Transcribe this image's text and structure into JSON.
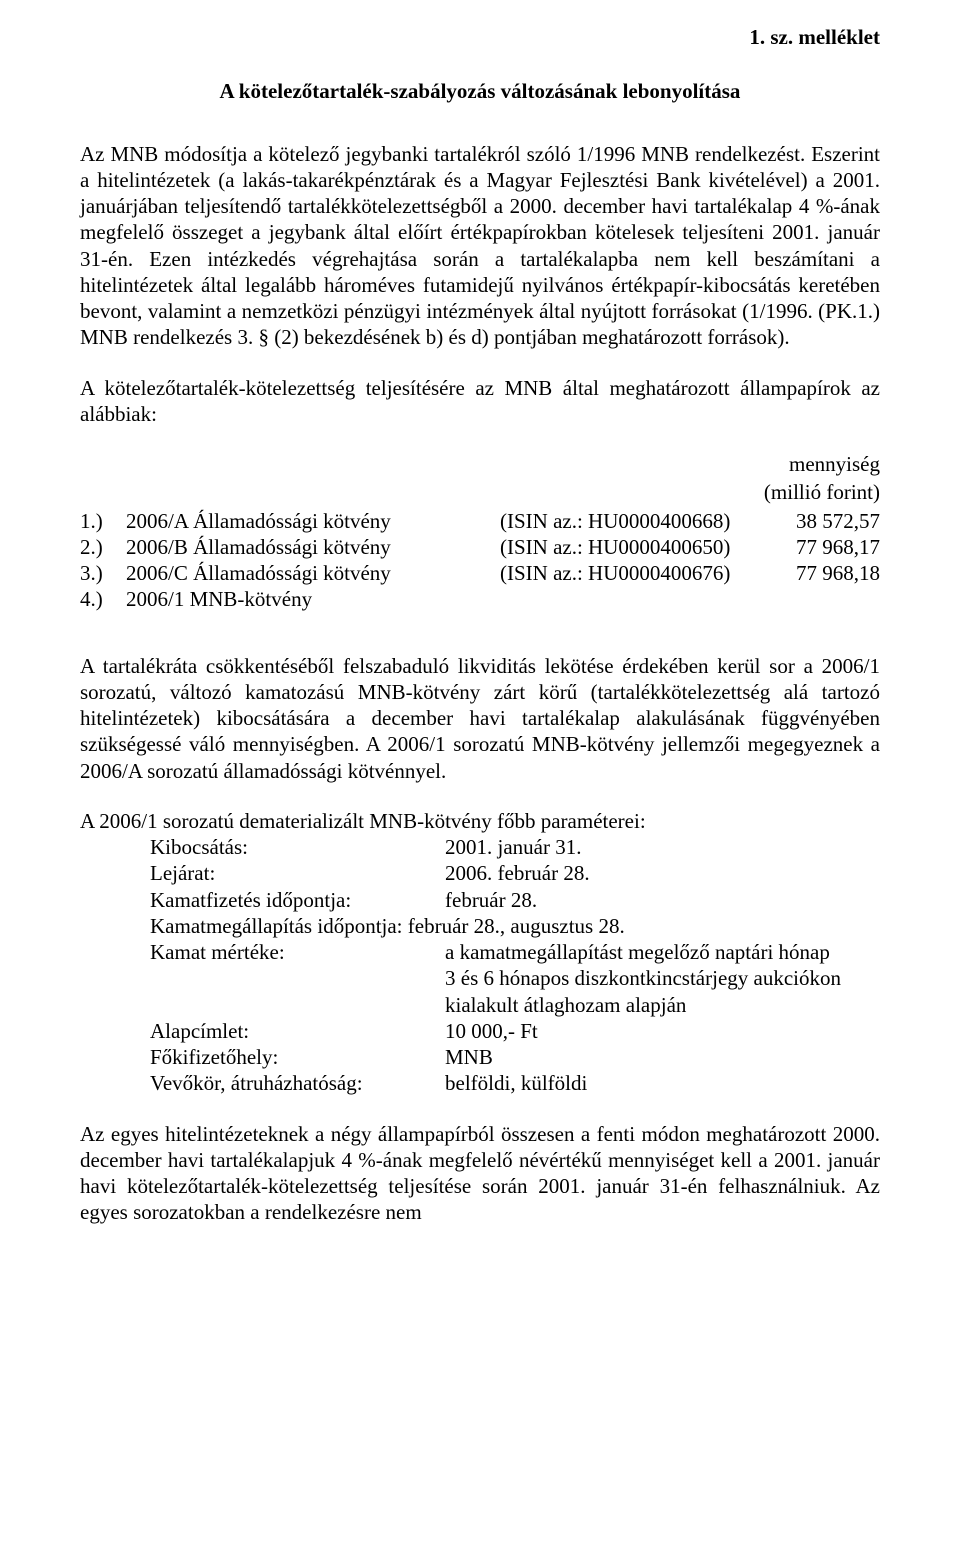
{
  "header": {
    "annex": "1. sz. melléklet"
  },
  "title": "A kötelezőtartalék-szabályozás változásának lebonyolítása",
  "para1": "Az MNB módosítja a kötelező jegybanki tartalékról szóló 1/1996 MNB rendelkezést. Eszerint a hitelintézetek (a lakás-takarékpénztárak és a Magyar Fejlesztési Bank kivételével) a 2001. januárjában teljesítendő tartalékkötelezettségből a 2000. december havi tartalékalap 4 %-ának megfelelő összeget a jegybank által előírt értékpapírokban kötelesek teljesíteni 2001. január 31-én. Ezen intézkedés végrehajtása során a tartalékalapba nem kell beszámítani a hitelintézetek által legalább hároméves futamidejű nyilvános értékpapír-kibocsátás keretében bevont, valamint a nemzetközi pénzügyi intézmények által nyújtott forrásokat (1/1996. (PK.1.) MNB rendelkezés 3. § (2) bekezdésének b) és d) pontjában meghatározott források).",
  "para2": "A kötelezőtartalék-kötelezettség teljesítésére az MNB által meghatározott állampapírok az alábbiak:",
  "qty_header1": "mennyiség",
  "qty_header2": "(millió forint)",
  "bonds": [
    {
      "idx": "1.)",
      "name": "2006/A Államadóssági kötvény",
      "isin": "(ISIN az.: HU0000400668)",
      "qty": "38 572,57"
    },
    {
      "idx": "2.)",
      "name": "2006/B Államadóssági kötvény",
      "isin": "(ISIN az.: HU0000400650)",
      "qty": "77 968,17"
    },
    {
      "idx": "3.)",
      "name": "2006/C Államadóssági kötvény",
      "isin": "(ISIN az.: HU0000400676)",
      "qty": "77 968,18"
    },
    {
      "idx": "4.)",
      "name": "2006/1 MNB-kötvény",
      "isin": "",
      "qty": ""
    }
  ],
  "para3": "A tartalékráta csökkentéséből felszabaduló likviditás lekötése érdekében kerül sor a 2006/1 sorozatú, változó kamatozású MNB-kötvény zárt körű (tartalékkötelezettség alá tartozó hitelintézetek) kibocsátására a december havi tartalékalap alakulásának függvényében szükségessé váló mennyiségben. A 2006/1 sorozatú MNB-kötvény jellemzői megegyeznek a 2006/A sorozatú államadóssági kötvénnyel.",
  "params_title": "A 2006/1 sorozatú dematerializált MNB-kötvény főbb paraméterei:",
  "params": {
    "l1": "Kibocsátás:",
    "v1": "2001. január 31.",
    "l2": "Lejárat:",
    "v2": "2006. február 28.",
    "l3": "Kamatfizetés időpontja:",
    "v3": "február 28.",
    "l4": "Kamatmegállapítás időpontja: február 28., augusztus 28.",
    "l5": "Kamat mértéke:",
    "v5a": "a kamatmegállapítást megelőző naptári hónap",
    "v5b": "3 és 6 hónapos diszkontkincstárjegy aukciókon",
    "v5c": "kialakult átlaghozam alapján",
    "l6": "Alapcímlet:",
    "v6": "10 000,- Ft",
    "l7": "Főkifizetőhely:",
    "v7": "MNB",
    "l8": "Vevőkör, átruházhatóság:",
    "v8": "belföldi, külföldi"
  },
  "para4": "Az egyes hitelintézeteknek a négy állampapírból összesen a fenti módon meghatározott 2000. december havi tartalékalapjuk 4 %-ának megfelelő névértékű mennyiséget kell a 2001. január havi kötelezőtartalék-kötelezettség teljesítése során 2001. január 31-én felhasználniuk. Az egyes sorozatokban a rendelkezésre nem"
}
